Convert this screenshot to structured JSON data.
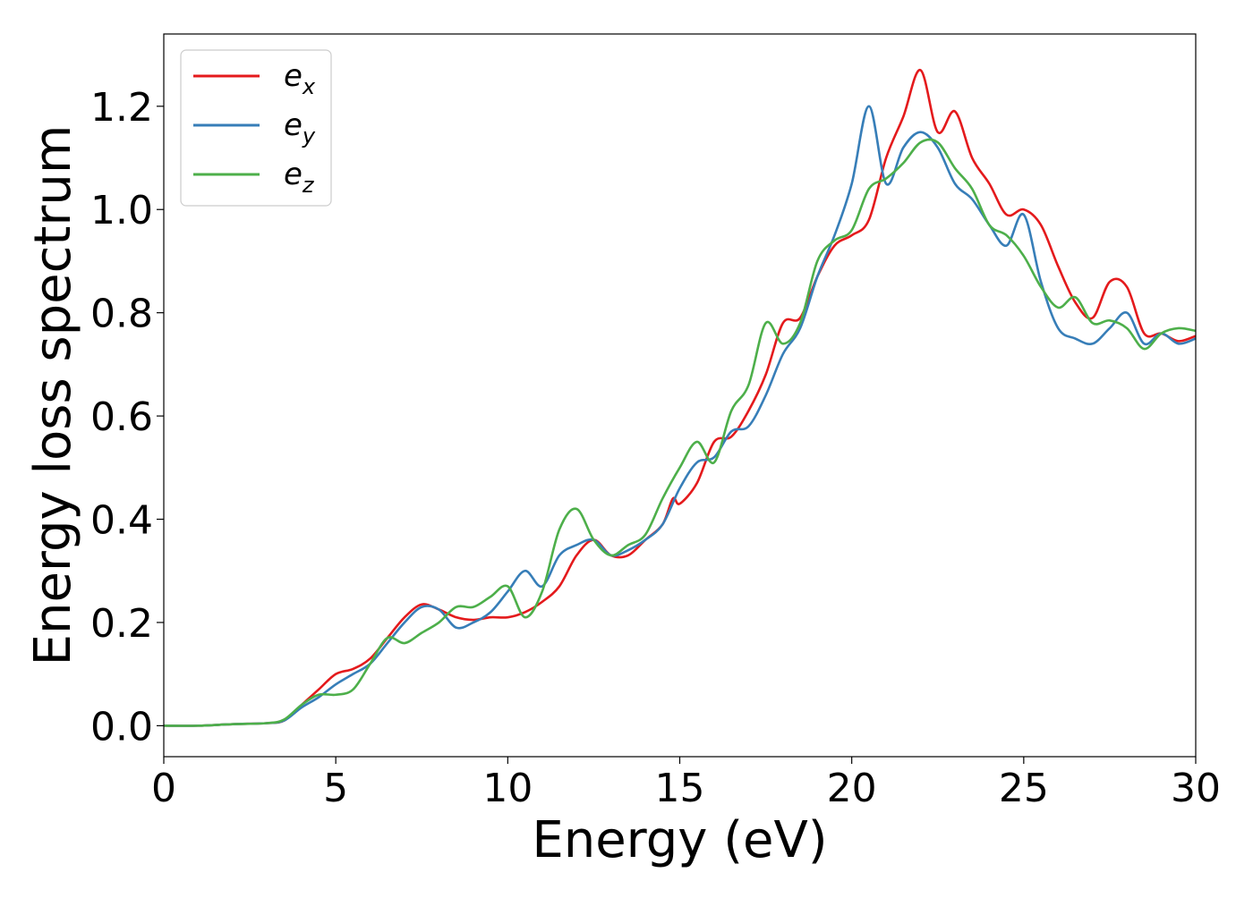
{
  "chart_data": {
    "type": "line",
    "title": "",
    "xlabel": "Energy (eV)",
    "ylabel": "Energy loss spectrum",
    "xlim": [
      0,
      30
    ],
    "ylim": [
      -0.06,
      1.34
    ],
    "xticks": [
      0,
      5,
      10,
      15,
      20,
      25,
      30
    ],
    "yticks": [
      0.0,
      0.2,
      0.4,
      0.6,
      0.8,
      1.0,
      1.2
    ],
    "xtick_labels": [
      "0",
      "5",
      "10",
      "15",
      "20",
      "25",
      "30"
    ],
    "ytick_labels": [
      "0.0",
      "0.2",
      "0.4",
      "0.6",
      "0.8",
      "1.0",
      "1.2"
    ],
    "grid": false,
    "legend_position": "top-left",
    "series": [
      {
        "name": "e",
        "subscript": "x",
        "color": "#e41a1c",
        "x": [
          0,
          1,
          2,
          3,
          3.5,
          4,
          4.5,
          5,
          5.5,
          6,
          6.5,
          7,
          7.5,
          8,
          8.5,
          9,
          9.5,
          10,
          10.5,
          11,
          11.5,
          12,
          12.5,
          13,
          13.5,
          14,
          14.5,
          14.8,
          15,
          15.5,
          16,
          16.5,
          17,
          17.5,
          18,
          18.5,
          19,
          19.5,
          20,
          20.5,
          21,
          21.5,
          22,
          22.5,
          23,
          23.5,
          24,
          24.5,
          25,
          25.5,
          26,
          26.5,
          27,
          27.5,
          28,
          28.5,
          29,
          29.5,
          30
        ],
        "y": [
          0,
          0,
          0.003,
          0.005,
          0.01,
          0.04,
          0.07,
          0.1,
          0.11,
          0.13,
          0.17,
          0.21,
          0.235,
          0.225,
          0.21,
          0.205,
          0.21,
          0.21,
          0.22,
          0.24,
          0.27,
          0.33,
          0.36,
          0.33,
          0.33,
          0.36,
          0.39,
          0.44,
          0.43,
          0.47,
          0.55,
          0.56,
          0.61,
          0.68,
          0.78,
          0.79,
          0.87,
          0.93,
          0.95,
          0.98,
          1.1,
          1.18,
          1.27,
          1.15,
          1.19,
          1.1,
          1.05,
          0.99,
          1.0,
          0.97,
          0.89,
          0.82,
          0.79,
          0.86,
          0.85,
          0.76,
          0.76,
          0.745,
          0.755
        ]
      },
      {
        "name": "e",
        "subscript": "y",
        "color": "#377eb8",
        "x": [
          0,
          1,
          2,
          3,
          3.5,
          4,
          4.5,
          5,
          5.5,
          6,
          6.5,
          7,
          7.5,
          8,
          8.5,
          9,
          9.5,
          10,
          10.5,
          11,
          11.5,
          12,
          12.5,
          13,
          13.5,
          14,
          14.5,
          15,
          15.5,
          16,
          16.5,
          17,
          17.5,
          18,
          18.5,
          19,
          19.5,
          20,
          20.5,
          21,
          21.5,
          22,
          22.5,
          23,
          23.5,
          24,
          24.5,
          25,
          25.5,
          26,
          26.5,
          27,
          27.5,
          28,
          28.5,
          29,
          29.5,
          30
        ],
        "y": [
          0,
          0,
          0.003,
          0.005,
          0.01,
          0.035,
          0.055,
          0.08,
          0.1,
          0.12,
          0.16,
          0.2,
          0.23,
          0.225,
          0.19,
          0.2,
          0.22,
          0.26,
          0.3,
          0.27,
          0.33,
          0.35,
          0.36,
          0.33,
          0.34,
          0.36,
          0.39,
          0.46,
          0.51,
          0.52,
          0.57,
          0.58,
          0.64,
          0.72,
          0.77,
          0.87,
          0.95,
          1.05,
          1.2,
          1.05,
          1.12,
          1.15,
          1.12,
          1.05,
          1.02,
          0.97,
          0.93,
          0.99,
          0.86,
          0.77,
          0.75,
          0.74,
          0.77,
          0.8,
          0.74,
          0.76,
          0.74,
          0.75
        ]
      },
      {
        "name": "e",
        "subscript": "z",
        "color": "#4daf4a",
        "x": [
          0,
          1,
          2,
          3,
          3.5,
          4,
          4.5,
          5,
          5.5,
          6,
          6.5,
          7,
          7.5,
          8,
          8.5,
          9,
          9.5,
          10,
          10.5,
          11,
          11.5,
          12,
          12.5,
          13,
          13.5,
          14,
          14.5,
          15,
          15.5,
          16,
          16.5,
          17,
          17.5,
          18,
          18.5,
          19,
          19.5,
          20,
          20.5,
          21,
          21.5,
          22,
          22.5,
          23,
          23.5,
          24,
          24.5,
          25,
          25.5,
          26,
          26.5,
          27,
          27.5,
          28,
          28.5,
          29,
          29.5,
          30
        ],
        "y": [
          0,
          0,
          0.003,
          0.005,
          0.012,
          0.04,
          0.06,
          0.06,
          0.07,
          0.12,
          0.17,
          0.16,
          0.18,
          0.2,
          0.23,
          0.23,
          0.25,
          0.27,
          0.21,
          0.26,
          0.38,
          0.42,
          0.36,
          0.33,
          0.35,
          0.37,
          0.44,
          0.5,
          0.55,
          0.51,
          0.61,
          0.66,
          0.78,
          0.74,
          0.78,
          0.9,
          0.94,
          0.96,
          1.04,
          1.06,
          1.09,
          1.13,
          1.13,
          1.08,
          1.04,
          0.97,
          0.95,
          0.91,
          0.85,
          0.81,
          0.83,
          0.78,
          0.785,
          0.77,
          0.73,
          0.76,
          0.77,
          0.765
        ]
      }
    ]
  }
}
